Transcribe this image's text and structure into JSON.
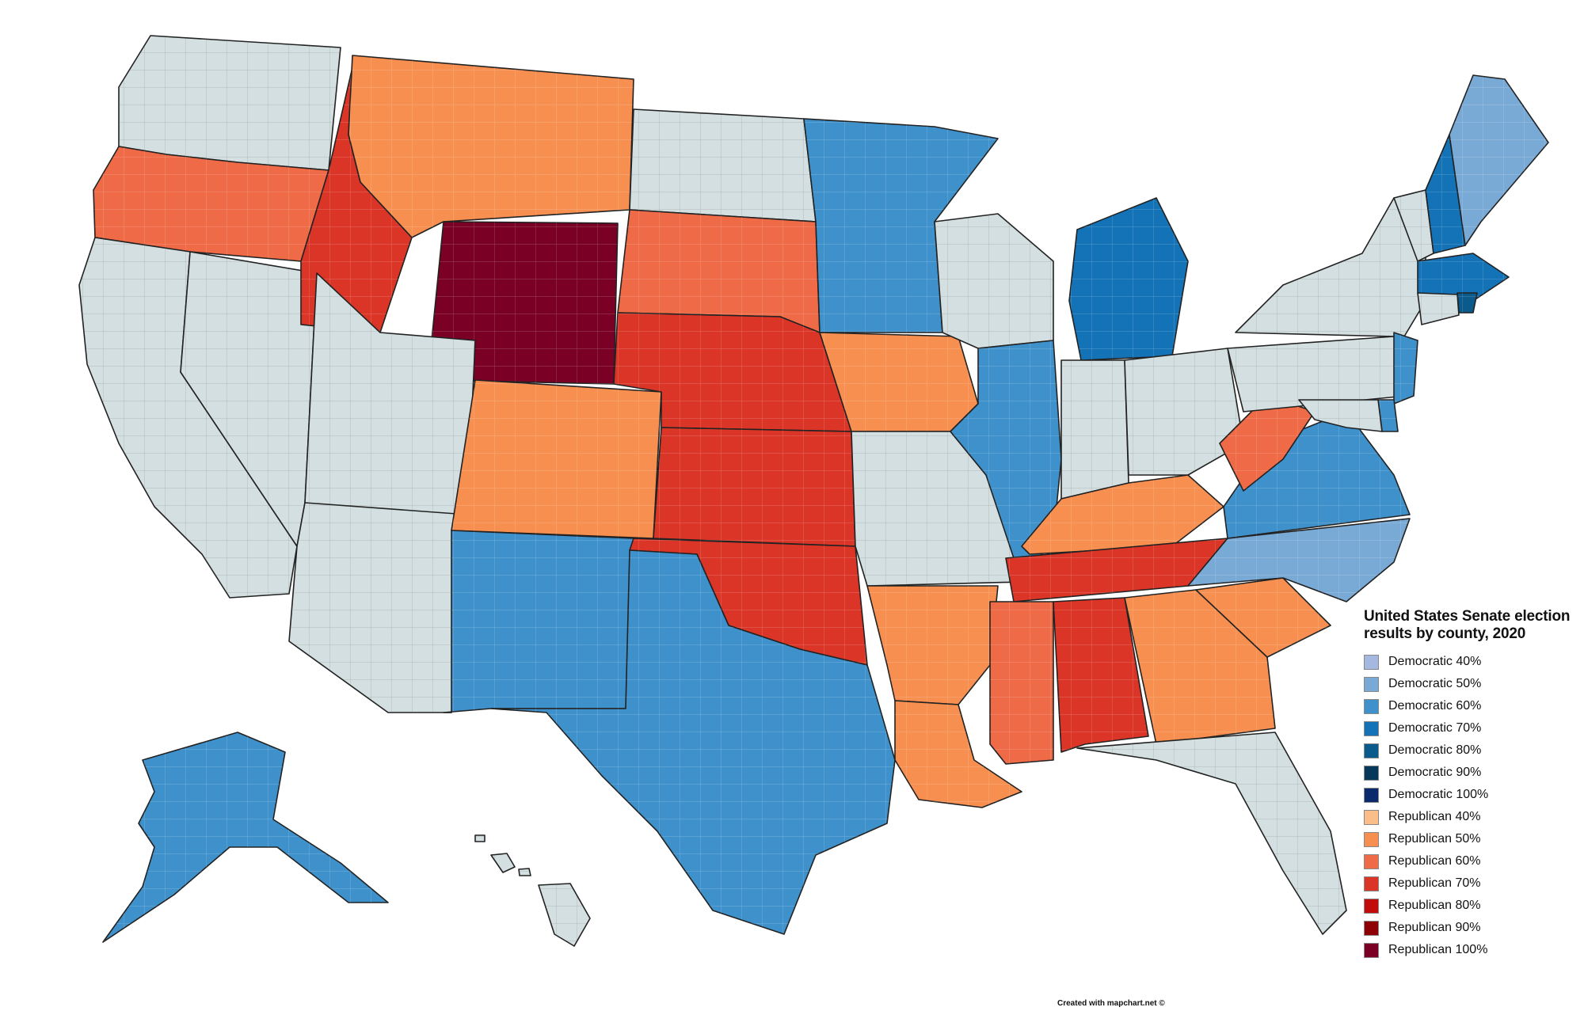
{
  "legend": {
    "title": "United States Senate election results by county, 2020",
    "items": [
      {
        "label": "Democratic 40%",
        "color": "#a5b9e0",
        "key": "d40"
      },
      {
        "label": "Democratic 50%",
        "color": "#79aad6",
        "key": "d50"
      },
      {
        "label": "Democratic 60%",
        "color": "#3f91cb",
        "key": "d60"
      },
      {
        "label": "Democratic 70%",
        "color": "#1472b6",
        "key": "d70"
      },
      {
        "label": "Democratic 80%",
        "color": "#0b5a8c",
        "key": "d80"
      },
      {
        "label": "Democratic 90%",
        "color": "#06385c",
        "key": "d90"
      },
      {
        "label": "Democratic 100%",
        "color": "#0a2a6b",
        "key": "d100"
      },
      {
        "label": "Republican 40%",
        "color": "#fbbd8a",
        "key": "r40"
      },
      {
        "label": "Republican 50%",
        "color": "#f78f50",
        "key": "r50"
      },
      {
        "label": "Republican 60%",
        "color": "#ef6a47",
        "key": "r60"
      },
      {
        "label": "Republican 70%",
        "color": "#db3527",
        "key": "r70"
      },
      {
        "label": "Republican 80%",
        "color": "#c20b0b",
        "key": "r80"
      },
      {
        "label": "Republican 90%",
        "color": "#8e0005",
        "key": "r90"
      },
      {
        "label": "Republican 100%",
        "color": "#7a0025",
        "key": "r100"
      }
    ]
  },
  "no_election_color": "#d3dfe0",
  "credit": "Created with mapchart.net ©",
  "states": [
    {
      "name": "Washington",
      "result": "none"
    },
    {
      "name": "Oregon",
      "result": "r60"
    },
    {
      "name": "California",
      "result": "none"
    },
    {
      "name": "Nevada",
      "result": "none"
    },
    {
      "name": "Idaho",
      "result": "r70"
    },
    {
      "name": "Montana",
      "result": "r50"
    },
    {
      "name": "Wyoming",
      "result": "r100"
    },
    {
      "name": "Utah",
      "result": "none"
    },
    {
      "name": "Arizona",
      "result": "none"
    },
    {
      "name": "Colorado",
      "result": "r50"
    },
    {
      "name": "New Mexico",
      "result": "d60"
    },
    {
      "name": "North Dakota",
      "result": "none"
    },
    {
      "name": "South Dakota",
      "result": "r60"
    },
    {
      "name": "Nebraska",
      "result": "r70"
    },
    {
      "name": "Kansas",
      "result": "r70"
    },
    {
      "name": "Oklahoma",
      "result": "r70"
    },
    {
      "name": "Texas",
      "result": "d60"
    },
    {
      "name": "Minnesota",
      "result": "d60"
    },
    {
      "name": "Iowa",
      "result": "r50"
    },
    {
      "name": "Missouri",
      "result": "none"
    },
    {
      "name": "Arkansas",
      "result": "r50"
    },
    {
      "name": "Louisiana",
      "result": "r50"
    },
    {
      "name": "Wisconsin",
      "result": "none"
    },
    {
      "name": "Illinois",
      "result": "d60"
    },
    {
      "name": "Michigan",
      "result": "d70"
    },
    {
      "name": "Indiana",
      "result": "none"
    },
    {
      "name": "Ohio",
      "result": "none"
    },
    {
      "name": "Kentucky",
      "result": "r50"
    },
    {
      "name": "Tennessee",
      "result": "r70"
    },
    {
      "name": "Mississippi",
      "result": "r60"
    },
    {
      "name": "Alabama",
      "result": "r70"
    },
    {
      "name": "Georgia",
      "result": "r50"
    },
    {
      "name": "Florida",
      "result": "none"
    },
    {
      "name": "South Carolina",
      "result": "r50"
    },
    {
      "name": "North Carolina",
      "result": "d50"
    },
    {
      "name": "Virginia",
      "result": "d60"
    },
    {
      "name": "West Virginia",
      "result": "r60"
    },
    {
      "name": "Pennsylvania",
      "result": "none"
    },
    {
      "name": "New York",
      "result": "none"
    },
    {
      "name": "Vermont",
      "result": "none"
    },
    {
      "name": "New Hampshire",
      "result": "d70"
    },
    {
      "name": "Maine",
      "result": "d50"
    },
    {
      "name": "Massachusetts",
      "result": "d70"
    },
    {
      "name": "Rhode Island",
      "result": "d80"
    },
    {
      "name": "Connecticut",
      "result": "none"
    },
    {
      "name": "New Jersey",
      "result": "d60"
    },
    {
      "name": "Delaware",
      "result": "d60"
    },
    {
      "name": "Maryland",
      "result": "none"
    },
    {
      "name": "Alaska",
      "result": "d60"
    },
    {
      "name": "Hawaii",
      "result": "none"
    }
  ]
}
